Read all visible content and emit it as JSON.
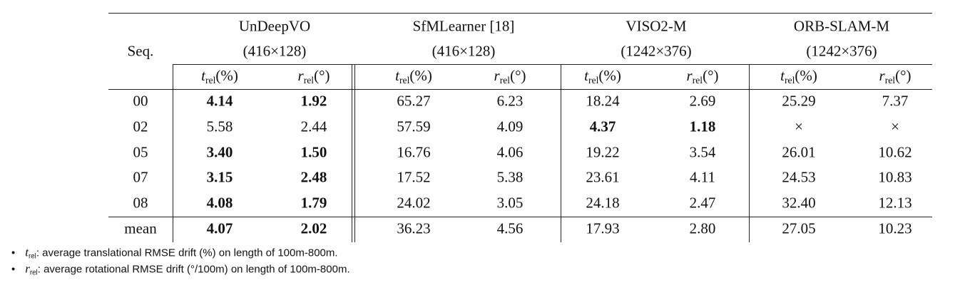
{
  "table": {
    "corner": "Seq.",
    "groups": [
      {
        "name": "UnDeepVO",
        "resolution": "(416×128)"
      },
      {
        "name": "SfMLearner [18]",
        "resolution": "(416×128)"
      },
      {
        "name": "VISO2-M",
        "resolution": "(1242×376)"
      },
      {
        "name": "ORB-SLAM-M",
        "resolution": "(1242×376)"
      }
    ],
    "metrics": [
      {
        "symbol": "t",
        "sub": "rel",
        "unit": "(%)"
      },
      {
        "symbol": "r",
        "sub": "rel",
        "unit": "(°)"
      }
    ],
    "rows": [
      {
        "seq": "00",
        "cells": [
          "4.14",
          "1.92",
          "65.27",
          "6.23",
          "18.24",
          "2.69",
          "25.29",
          "7.37"
        ],
        "bold": [
          0,
          1
        ]
      },
      {
        "seq": "02",
        "cells": [
          "5.58",
          "2.44",
          "57.59",
          "4.09",
          "4.37",
          "1.18",
          "×",
          "×"
        ],
        "bold": [
          4,
          5
        ]
      },
      {
        "seq": "05",
        "cells": [
          "3.40",
          "1.50",
          "16.76",
          "4.06",
          "19.22",
          "3.54",
          "26.01",
          "10.62"
        ],
        "bold": [
          0,
          1
        ]
      },
      {
        "seq": "07",
        "cells": [
          "3.15",
          "2.48",
          "17.52",
          "5.38",
          "23.61",
          "4.11",
          "24.53",
          "10.83"
        ],
        "bold": [
          0,
          1
        ]
      },
      {
        "seq": "08",
        "cells": [
          "4.08",
          "1.79",
          "24.02",
          "3.05",
          "24.18",
          "2.47",
          "32.40",
          "12.13"
        ],
        "bold": [
          0,
          1
        ]
      },
      {
        "seq": "mean",
        "cells": [
          "4.07",
          "2.02",
          "36.23",
          "4.56",
          "17.93",
          "2.80",
          "27.05",
          "10.23"
        ],
        "bold": [
          0,
          1
        ]
      }
    ]
  },
  "notes": [
    {
      "symbol": "t",
      "sub": "rel",
      "text": ": average translational RMSE drift (%) on length of 100m-800m."
    },
    {
      "symbol": "r",
      "sub": "rel",
      "text": ": average rotational RMSE drift (°/100m) on length of 100m-800m."
    }
  ]
}
